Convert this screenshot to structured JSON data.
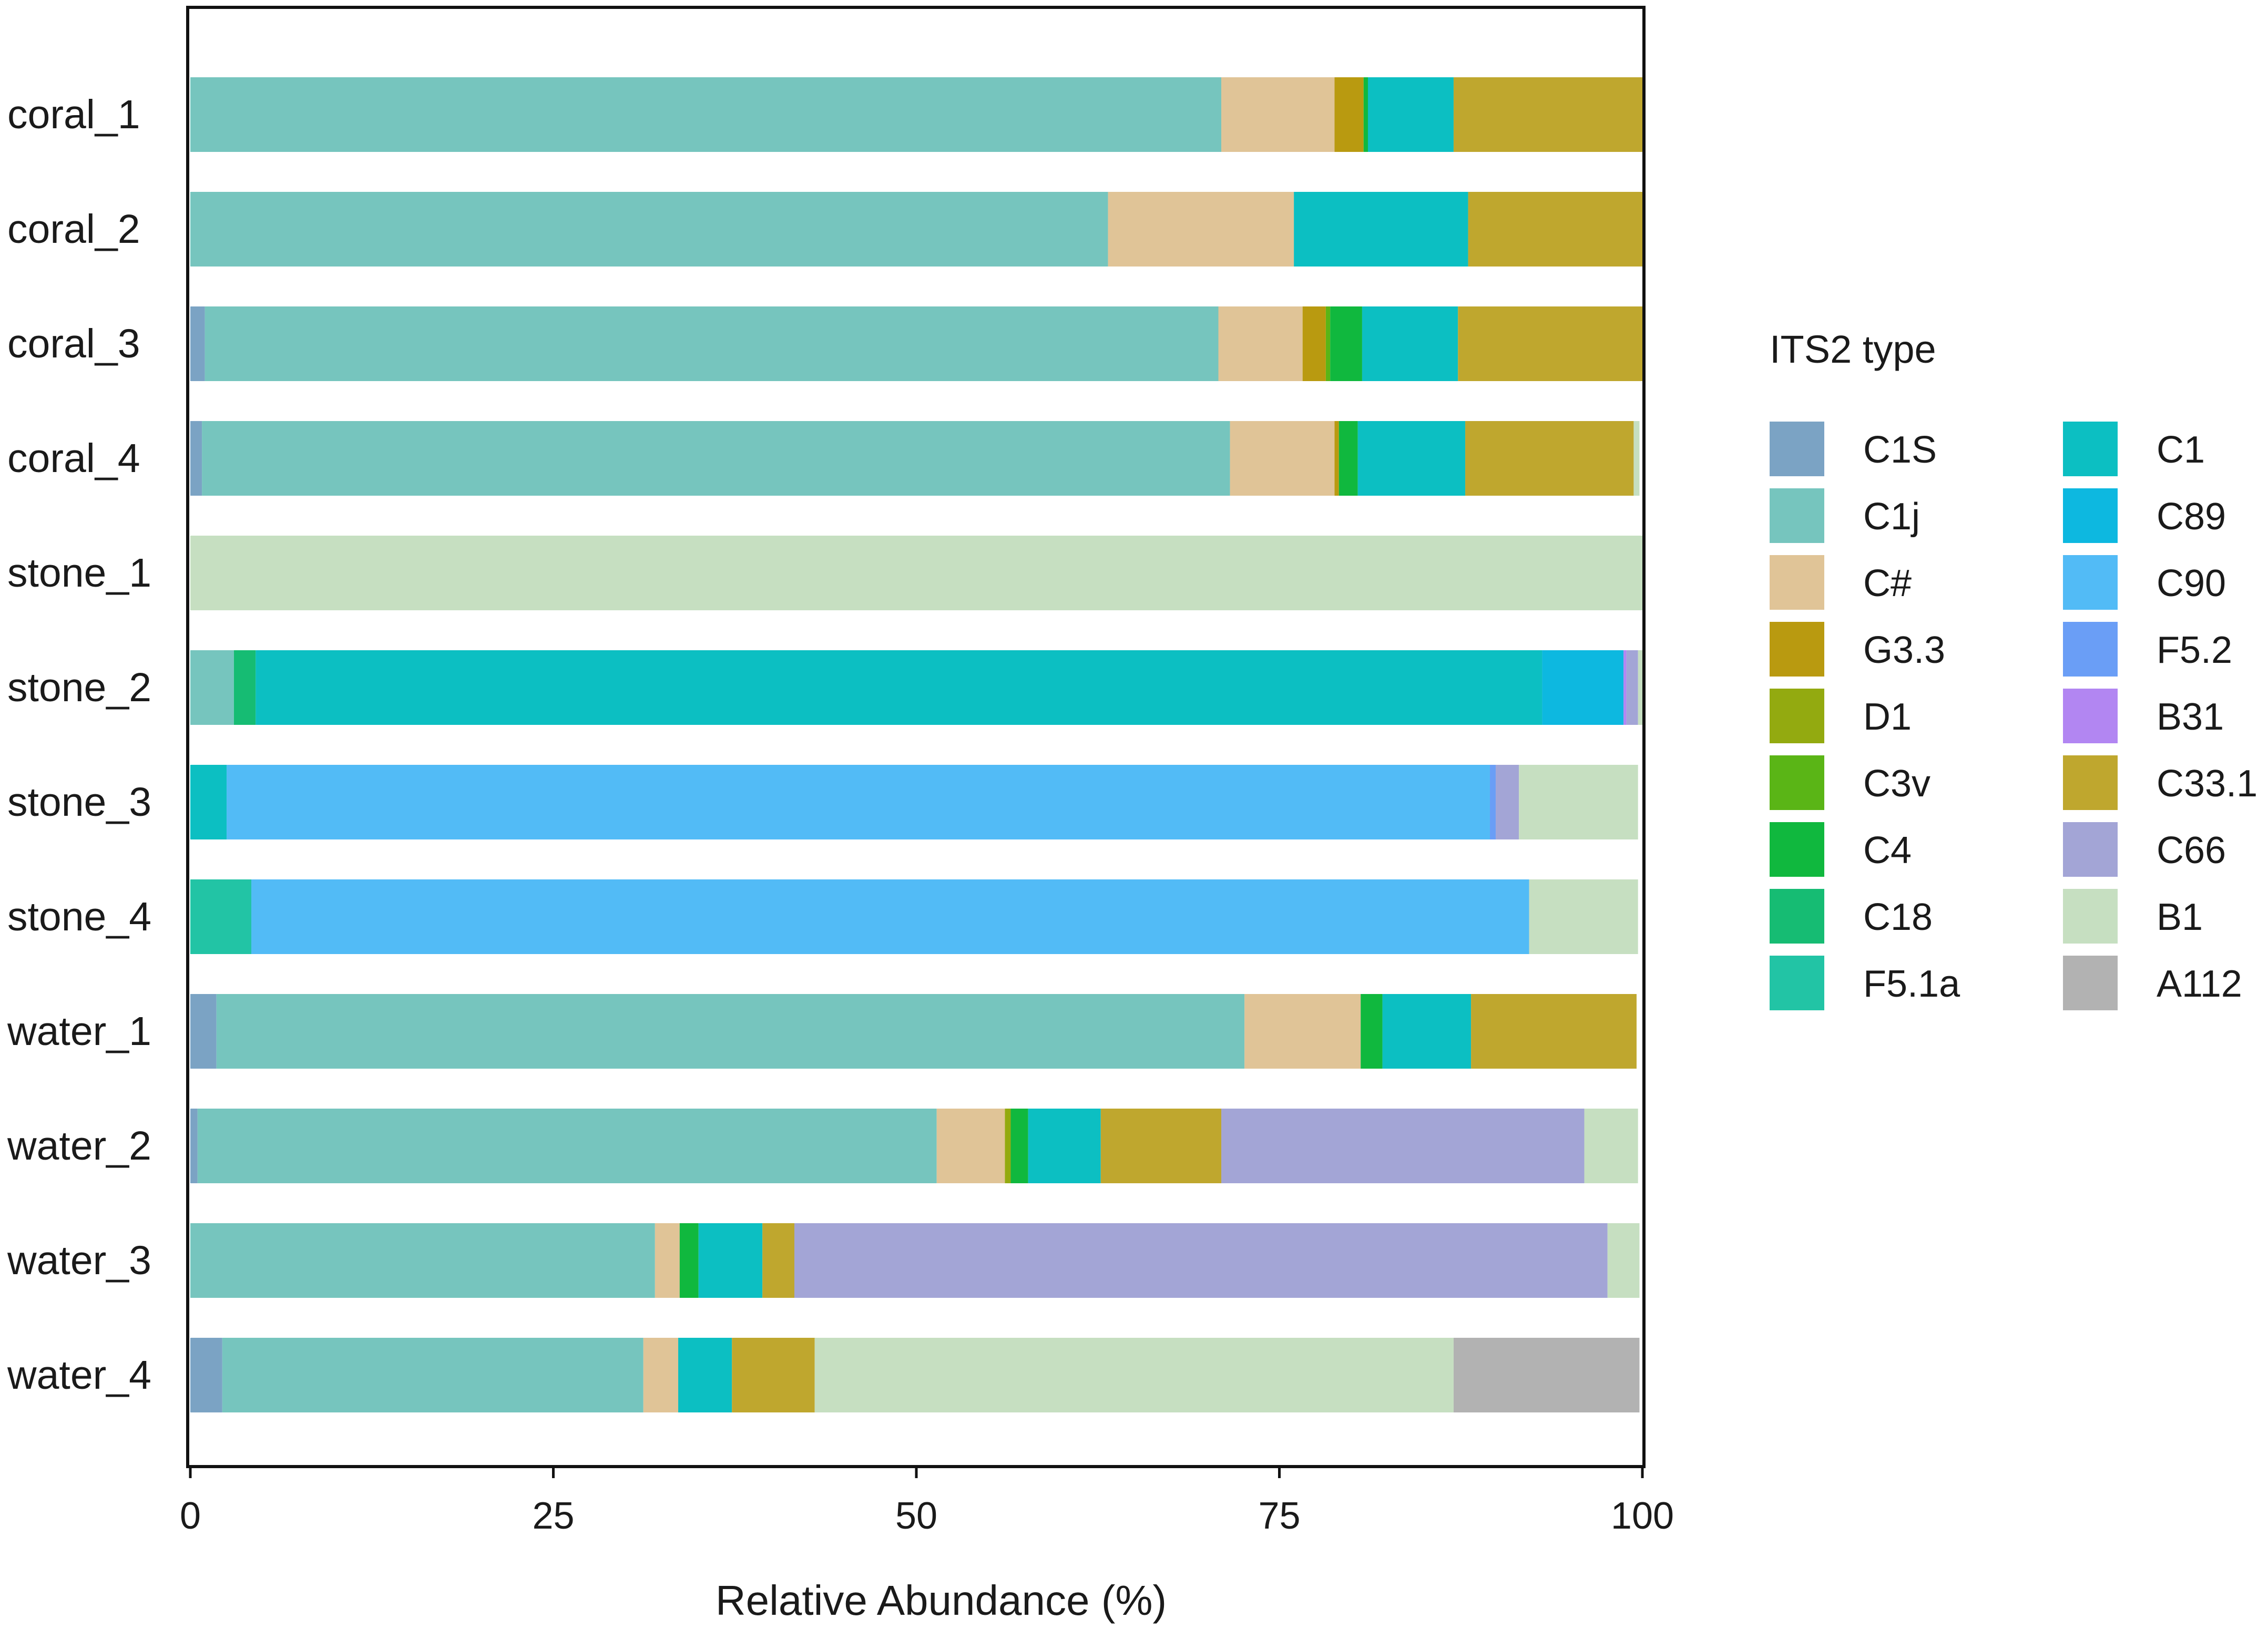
{
  "chart_data": {
    "type": "bar",
    "orientation": "horizontal",
    "stacked": true,
    "title": "",
    "xlabel": "Relative Abundance (%)",
    "ylabel": "",
    "xlim": [
      0,
      100
    ],
    "xticks": [
      "0",
      "25",
      "50",
      "75",
      "100"
    ],
    "grid": false,
    "legend_title": "ITS2 type",
    "legend_position": "right",
    "categories": [
      "coral_1",
      "coral_2",
      "coral_3",
      "coral_4",
      "stone_1",
      "stone_2",
      "stone_3",
      "stone_4",
      "water_1",
      "water_2",
      "water_3",
      "water_4"
    ],
    "series": [
      {
        "name": "C1S",
        "color": "#7ba3c4",
        "values": [
          0,
          0,
          1.0,
          0.8,
          0,
          0,
          0,
          0,
          1.8,
          0.5,
          0,
          2.2
        ]
      },
      {
        "name": "C1j",
        "color": "#76c5be",
        "values": [
          71,
          63.2,
          69.8,
          70.8,
          0,
          3.0,
          0,
          0,
          70.8,
          50.9,
          32.0,
          29.0
        ]
      },
      {
        "name": "C#",
        "color": "#e0c497",
        "values": [
          7.8,
          12.8,
          5.8,
          7.2,
          0,
          0,
          0,
          0,
          8.0,
          4.7,
          1.7,
          2.4
        ]
      },
      {
        "name": "G3.3",
        "color": "#b99a10",
        "values": [
          2.0,
          0,
          1.6,
          0.3,
          0,
          0,
          0,
          0,
          0,
          0,
          0,
          0
        ]
      },
      {
        "name": "D1",
        "color": "#93aa10",
        "values": [
          0,
          0,
          0,
          0,
          0,
          0,
          0,
          0,
          0,
          0.4,
          0,
          0
        ]
      },
      {
        "name": "C3v",
        "color": "#5ab516",
        "values": [
          0,
          0,
          0.3,
          0,
          0,
          0,
          0,
          0,
          0,
          0,
          0,
          0
        ]
      },
      {
        "name": "C4",
        "color": "#10b83e",
        "values": [
          0.3,
          0,
          2.2,
          1.3,
          0,
          0,
          0,
          0,
          1.5,
          1.2,
          1.3,
          0
        ]
      },
      {
        "name": "C18",
        "color": "#16bc73",
        "values": [
          0,
          0,
          0,
          0,
          0,
          1.5,
          0,
          0,
          0,
          0,
          0,
          0
        ]
      },
      {
        "name": "F5.1a",
        "color": "#22c4a5",
        "values": [
          0,
          0,
          0,
          0,
          0,
          0,
          0,
          4.2,
          0,
          0,
          0,
          0
        ]
      },
      {
        "name": "C1",
        "color": "#0cbfc2",
        "values": [
          5.9,
          12.0,
          6.6,
          7.4,
          0,
          88.6,
          2.5,
          0,
          6.1,
          5.0,
          4.4,
          3.7
        ]
      },
      {
        "name": "C89",
        "color": "#0db8e0",
        "values": [
          0,
          0,
          0,
          0,
          0,
          5.6,
          0,
          0,
          0,
          0,
          0,
          0
        ]
      },
      {
        "name": "C90",
        "color": "#52bbf6",
        "values": [
          0,
          0,
          0,
          0,
          0,
          0,
          87.0,
          88.0,
          0,
          0,
          0,
          0
        ]
      },
      {
        "name": "F5.2",
        "color": "#6a9ef6",
        "values": [
          0,
          0,
          0,
          0,
          0,
          0,
          0.4,
          0,
          0,
          0,
          0,
          0
        ]
      },
      {
        "name": "B31",
        "color": "#b286f2",
        "values": [
          0,
          0,
          0,
          0,
          0,
          0.2,
          0,
          0,
          0,
          0,
          0,
          0
        ]
      },
      {
        "name": "C33.1",
        "color": "#bfa72e",
        "values": [
          13.0,
          12.0,
          12.8,
          11.6,
          0,
          0,
          0,
          0,
          11.4,
          8.3,
          2.2,
          5.7
        ]
      },
      {
        "name": "C66",
        "color": "#a3a5d6",
        "values": [
          0,
          0,
          0,
          0,
          0,
          0.8,
          1.6,
          0,
          0,
          25.0,
          56.0,
          0
        ]
      },
      {
        "name": "B1",
        "color": "#c6dfc1",
        "values": [
          0,
          0,
          0,
          0.4,
          100,
          0.3,
          8.2,
          7.5,
          0,
          3.7,
          2.2,
          44.0
        ]
      },
      {
        "name": "A112",
        "color": "#b2b2b2",
        "values": [
          0,
          0,
          0,
          0,
          0,
          0,
          0,
          0,
          0,
          0,
          0,
          12.8
        ]
      }
    ]
  }
}
